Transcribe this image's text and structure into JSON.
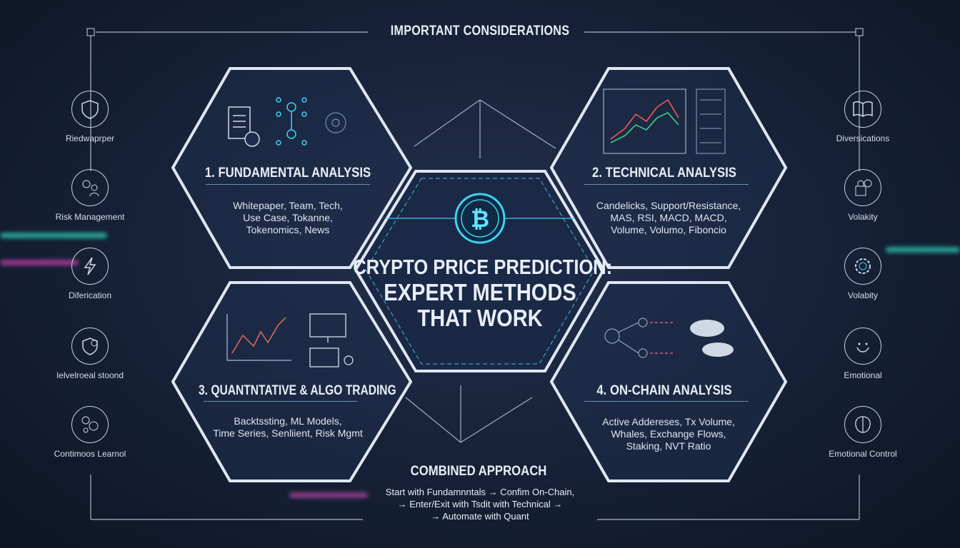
{
  "header": {
    "title": "IMPORTANT CONSIDERATIONS"
  },
  "center": {
    "line1": "CRYPTO PRICE PREDICTION:",
    "line2": "EXPERT METHODS",
    "line3": "THAT WORK",
    "icon": "bitcoin-icon",
    "accent": "#3fd3f0"
  },
  "sections": [
    {
      "title": "1. FUNDAMENTAL ANALYSIS",
      "body": "Whitepaper, Team, Tech,\nUse Case, Tokanne,\nTokenomics, News",
      "icons": [
        "document-icon",
        "network-icon",
        "circuit-icon"
      ]
    },
    {
      "title": "2. TECHNICAL ANALYSIS",
      "body": "Candelicks, Support/Resistance,\nMAS, RSI, MACD, MACD,\nVolume, Volumo, Fiboncio",
      "icons": [
        "candlestick-chart-icon",
        "indicator-panel-icon"
      ]
    },
    {
      "title": "3. QUANTNTATIVE & ALGO TRADING",
      "body": "Backtssting, ML Models,\nTime Series, Senliient, Risk Mgmt",
      "icons": [
        "line-chart-icon",
        "monitor-code-icon",
        "robot-arm-icon"
      ]
    },
    {
      "title": "4. ON-CHAIN ANALYSIS",
      "body": "Active Addereses, Tx Volume,\nWhales, Exchange Flows,\nStaking, NVT Ratio",
      "icons": [
        "node-flow-icon",
        "whale-icon"
      ]
    }
  ],
  "left_sidebar": [
    {
      "label": "Riedwaprper",
      "icon": "shield-icon"
    },
    {
      "label": "Risk Management",
      "icon": "people-icon"
    },
    {
      "label": "Diferication",
      "icon": "lightning-icon"
    },
    {
      "label": "Ielvelroeal stoond",
      "icon": "shield-chart-icon"
    },
    {
      "label": "Contimoos Learnol",
      "icon": "learning-icon"
    }
  ],
  "right_sidebar": [
    {
      "label": "Diversications",
      "icon": "book-icon"
    },
    {
      "label": "Volakity",
      "icon": "lock-icon"
    },
    {
      "label": "Volabity",
      "icon": "gear-icon"
    },
    {
      "label": "Emotional",
      "icon": "smile-icon"
    },
    {
      "label": "Emotional Control",
      "icon": "brain-icon"
    }
  ],
  "combined": {
    "title": "COMBINED APPROACH",
    "body": "Start with Fundamnntals → Confim  On-Chain,\n→ Enter/Exit with Tsdit with Technical →\n→ Automate with Quant"
  }
}
